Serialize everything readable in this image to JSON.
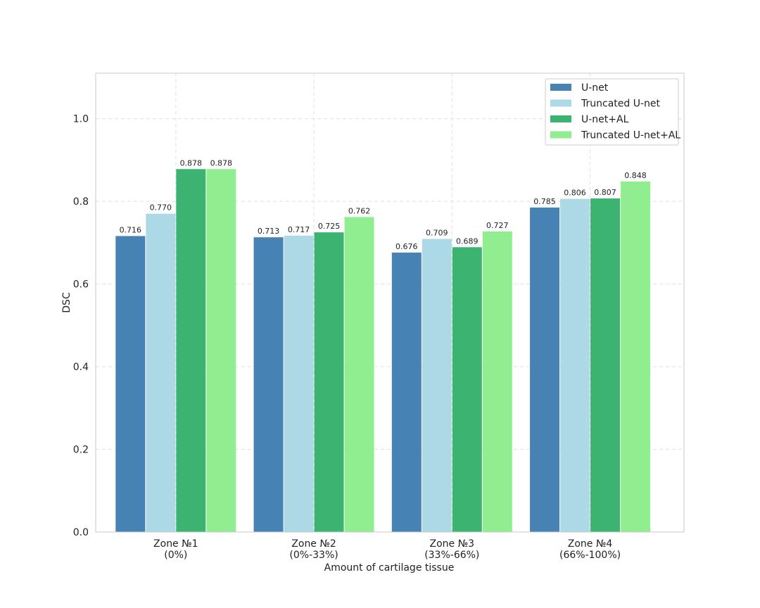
{
  "chart_data": {
    "type": "bar",
    "title": "",
    "xlabel": "Amount of cartilage tissue",
    "ylabel": "DSC",
    "ylim": [
      0,
      1.11
    ],
    "yticks": [
      "0.0",
      "0.2",
      "0.4",
      "0.6",
      "0.8",
      "1.0"
    ],
    "grid": true,
    "legend_position": "top-right",
    "categories": [
      [
        "Zone №1",
        "(0%)"
      ],
      [
        "Zone №2",
        "(0%-33%)"
      ],
      [
        "Zone №3",
        "(33%-66%)"
      ],
      [
        "Zone №4",
        "(66%-100%)"
      ]
    ],
    "series": [
      {
        "name": "U-net",
        "color": "#4682b4",
        "values": [
          0.716,
          0.713,
          0.676,
          0.785
        ],
        "labels": [
          "0.716",
          "0.713",
          "0.676",
          "0.785"
        ]
      },
      {
        "name": "Truncated U-net",
        "color": "#add8e6",
        "values": [
          0.77,
          0.717,
          0.709,
          0.806
        ],
        "labels": [
          "0.770",
          "0.717",
          "0.709",
          "0.806"
        ]
      },
      {
        "name": "U-net+AL",
        "color": "#3cb371",
        "values": [
          0.878,
          0.725,
          0.689,
          0.807
        ],
        "labels": [
          "0.878",
          "0.725",
          "0.689",
          "0.807"
        ]
      },
      {
        "name": "Truncated U-net+AL",
        "color": "#90ee90",
        "values": [
          0.878,
          0.762,
          0.727,
          0.848
        ],
        "labels": [
          "0.878",
          "0.762",
          "0.727",
          "0.848"
        ]
      }
    ]
  }
}
